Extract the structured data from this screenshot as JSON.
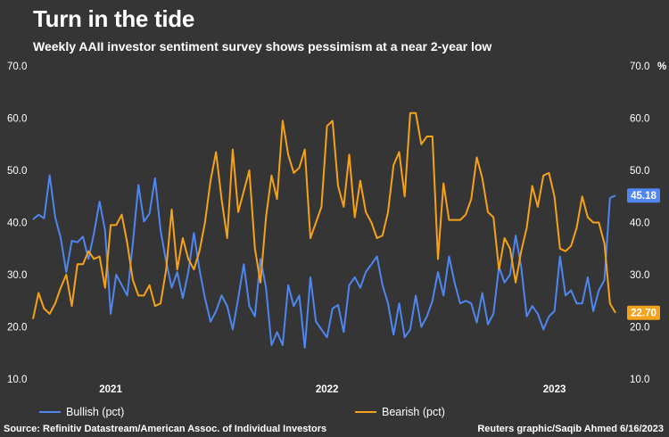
{
  "header": {
    "title": "Turn in the tide",
    "subtitle": "Weekly AAII investor sentiment survey shows pessimism at a near 2-year low"
  },
  "footer": {
    "source": "Source: Refinitiv Datastream/American Assoc. of Individual Investors",
    "credit": "Reuters graphic/Saqib Ahmed 6/16/2023"
  },
  "chart_data": {
    "type": "line",
    "ylim": [
      10,
      70
    ],
    "yticks": [
      "10.0",
      "20.0",
      "30.0",
      "40.0",
      "50.0",
      "60.0",
      "70.0"
    ],
    "y_unit": "%",
    "x_labels": [
      "2021",
      "2022",
      "2023"
    ],
    "legend_position": "bottom",
    "grid": false,
    "colors": {
      "bullish": "#4f86f0",
      "bearish": "#f5a21b",
      "background": "#353535"
    },
    "end_labels": {
      "bullish": "45.18",
      "bearish": "22.70"
    },
    "series": [
      {
        "name": "Bullish (pct)",
        "key": "bullish",
        "values": [
          40.6,
          41.5,
          40.8,
          49.0,
          41.0,
          37.0,
          30.5,
          36.5,
          36.2,
          37.3,
          33.0,
          38.0,
          44.0,
          38.5,
          22.5,
          30.0,
          28.0,
          26.0,
          36.0,
          47.2,
          40.2,
          41.7,
          48.5,
          38.5,
          32.5,
          27.5,
          30.5,
          25.5,
          30.5,
          38.0,
          31.0,
          25.5,
          21.0,
          23.0,
          26.0,
          24.0,
          19.5,
          25.5,
          32.0,
          24.0,
          22.0,
          33.0,
          27.5,
          16.5,
          19.0,
          16.5,
          28.0,
          24.0,
          26.0,
          16.0,
          29.5,
          21.0,
          19.5,
          18.0,
          23.5,
          24.2,
          19.0,
          28.0,
          29.5,
          27.5,
          30.5,
          32.0,
          33.5,
          28.0,
          24.5,
          18.5,
          24.5,
          18.0,
          19.5,
          26.0,
          20.0,
          22.0,
          25.0,
          30.5,
          26.0,
          33.5,
          28.5,
          24.5,
          25.0,
          24.5,
          20.8,
          26.5,
          20.5,
          22.5,
          31.5,
          28.5,
          30.0,
          37.5,
          31.5,
          22.0,
          24.0,
          22.5,
          19.5,
          22.0,
          23.0,
          33.5,
          26.0,
          27.0,
          24.5,
          24.5,
          29.5,
          23.0,
          27.0,
          29.0,
          44.7,
          45.18
        ]
      },
      {
        "name": "Bearish (pct)",
        "key": "bearish",
        "values": [
          21.5,
          26.5,
          23.5,
          22.5,
          24.5,
          27.5,
          30.0,
          24.0,
          32.0,
          32.0,
          34.5,
          33.0,
          33.5,
          27.5,
          39.5,
          39.5,
          41.5,
          36.0,
          29.0,
          26.0,
          26.0,
          28.0,
          24.0,
          24.5,
          31.0,
          42.5,
          31.0,
          37.0,
          33.0,
          31.0,
          34.5,
          40.0,
          48.0,
          53.5,
          44.5,
          37.0,
          54.0,
          42.0,
          46.0,
          50.0,
          35.0,
          28.5,
          41.0,
          49.0,
          44.5,
          59.5,
          53.0,
          49.5,
          50.5,
          54.0,
          37.0,
          40.0,
          43.0,
          58.5,
          59.5,
          47.0,
          43.0,
          53.0,
          41.0,
          48.0,
          42.0,
          40.0,
          37.0,
          37.5,
          42.0,
          51.0,
          53.5,
          45.0,
          61.0,
          61.0,
          55.0,
          56.5,
          56.5,
          33.0,
          47.5,
          40.5,
          40.5,
          40.5,
          41.5,
          44.5,
          52.5,
          48.5,
          42.0,
          41.0,
          31.0,
          37.0,
          35.0,
          28.5,
          34.5,
          39.0,
          47.0,
          43.0,
          49.0,
          49.5,
          45.0,
          35.0,
          34.5,
          35.5,
          39.0,
          45.0,
          41.0,
          40.0,
          40.0,
          36.0,
          24.5,
          22.7
        ]
      }
    ]
  }
}
